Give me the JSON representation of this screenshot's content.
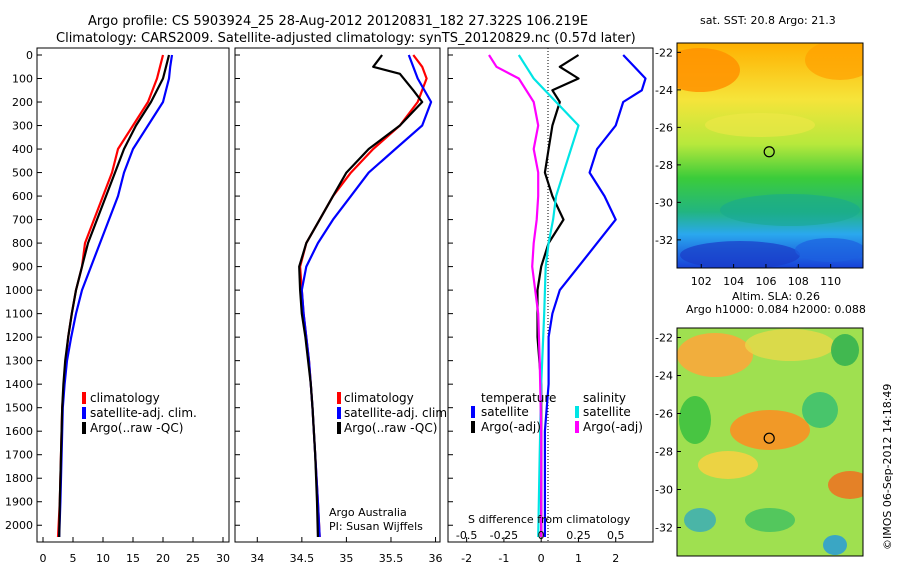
{
  "header": {
    "line1": "Argo profile: CS 5903924_25 28-Aug-2012 20120831_182 27.322S 106.219E",
    "line2": "Climatology: CARS2009. Satellite-adjusted climatology: synTS_20120829.nc (0.57d later)"
  },
  "credit": "©IMOS 06-Sep-2012 14:18:49",
  "colors": {
    "climatology": "#ff0000",
    "satellite": "#0000ff",
    "argo": "#000000",
    "salinity_sat": "#00e5e5",
    "salinity_argo": "#ff00ff"
  },
  "chart_data": [
    {
      "type": "line",
      "panel": "temperature",
      "y_ticks": [
        0,
        100,
        200,
        300,
        400,
        500,
        600,
        700,
        800,
        900,
        1000,
        1100,
        1200,
        1300,
        1400,
        1500,
        1600,
        1700,
        1800,
        1900,
        2000
      ],
      "x_ticks": [
        0,
        5,
        10,
        15,
        20,
        25,
        30
      ],
      "xlim": [
        -1,
        31
      ],
      "ylim": [
        2060,
        0
      ],
      "legend": [
        "climatology",
        "satellite-adj. clim.",
        "Argo(..raw -QC)"
      ],
      "series": [
        {
          "name": "climatology",
          "points": [
            [
              20,
              0
            ],
            [
              19.5,
              50
            ],
            [
              19,
              100
            ],
            [
              17.5,
              200
            ],
            [
              15,
              300
            ],
            [
              12.5,
              400
            ],
            [
              11.5,
              500
            ],
            [
              10,
              600
            ],
            [
              8.5,
              700
            ],
            [
              7,
              800
            ],
            [
              6.5,
              900
            ],
            [
              5.5,
              1000
            ],
            [
              4.8,
              1100
            ],
            [
              4.2,
              1200
            ],
            [
              3.8,
              1300
            ],
            [
              3.5,
              1400
            ],
            [
              3.2,
              1500
            ],
            [
              3,
              1700
            ],
            [
              2.8,
              1900
            ],
            [
              2.5,
              2050
            ]
          ]
        },
        {
          "name": "satellite-adj. clim.",
          "points": [
            [
              21.5,
              0
            ],
            [
              21.2,
              50
            ],
            [
              21,
              100
            ],
            [
              20,
              200
            ],
            [
              17.5,
              300
            ],
            [
              15,
              400
            ],
            [
              13.5,
              500
            ],
            [
              12.5,
              600
            ],
            [
              11,
              700
            ],
            [
              9.5,
              800
            ],
            [
              8,
              900
            ],
            [
              6.5,
              1000
            ],
            [
              5.5,
              1100
            ],
            [
              4.7,
              1200
            ],
            [
              4,
              1300
            ],
            [
              3.6,
              1400
            ],
            [
              3.3,
              1500
            ],
            [
              3.1,
              1700
            ],
            [
              2.9,
              1900
            ],
            [
              2.7,
              2050
            ]
          ]
        },
        {
          "name": "Argo(..raw -QC)",
          "points": [
            [
              21,
              0
            ],
            [
              20.5,
              50
            ],
            [
              20,
              100
            ],
            [
              18,
              200
            ],
            [
              15.5,
              300
            ],
            [
              13.5,
              400
            ],
            [
              12,
              500
            ],
            [
              10.5,
              600
            ],
            [
              9,
              700
            ],
            [
              7.5,
              800
            ],
            [
              6.5,
              900
            ],
            [
              5.5,
              1000
            ],
            [
              4.8,
              1100
            ],
            [
              4.2,
              1200
            ],
            [
              3.7,
              1300
            ],
            [
              3.4,
              1400
            ],
            [
              3.2,
              1500
            ],
            [
              3,
              1700
            ],
            [
              2.8,
              1900
            ],
            [
              2.7,
              2050
            ]
          ]
        }
      ]
    },
    {
      "type": "line",
      "panel": "salinity",
      "x_ticks": [
        34,
        34.5,
        35,
        35.5,
        36
      ],
      "xlim": [
        33.75,
        36.05
      ],
      "ylim": [
        2060,
        0
      ],
      "legend": [
        "climatology",
        "satellite-adj. clim.",
        "Argo(..raw -QC)"
      ],
      "annotation": [
        "Argo Australia",
        "PI: Susan Wijffels"
      ],
      "series": [
        {
          "name": "climatology",
          "points": [
            [
              35.75,
              0
            ],
            [
              35.85,
              50
            ],
            [
              35.9,
              100
            ],
            [
              35.8,
              200
            ],
            [
              35.6,
              300
            ],
            [
              35.3,
              400
            ],
            [
              35.05,
              500
            ],
            [
              34.85,
              600
            ],
            [
              34.7,
              700
            ],
            [
              34.55,
              800
            ],
            [
              34.48,
              900
            ],
            [
              34.5,
              1000
            ],
            [
              34.52,
              1100
            ],
            [
              34.55,
              1200
            ],
            [
              34.58,
              1300
            ],
            [
              34.6,
              1400
            ],
            [
              34.62,
              1500
            ],
            [
              34.65,
              1700
            ],
            [
              34.68,
              1900
            ],
            [
              34.7,
              2050
            ]
          ]
        },
        {
          "name": "satellite-adj. clim.",
          "points": [
            [
              35.7,
              0
            ],
            [
              35.8,
              100
            ],
            [
              35.95,
              200
            ],
            [
              35.85,
              300
            ],
            [
              35.55,
              400
            ],
            [
              35.25,
              500
            ],
            [
              35.05,
              600
            ],
            [
              34.85,
              700
            ],
            [
              34.68,
              800
            ],
            [
              34.55,
              900
            ],
            [
              34.5,
              1000
            ],
            [
              34.52,
              1100
            ],
            [
              34.55,
              1200
            ],
            [
              34.58,
              1300
            ],
            [
              34.6,
              1400
            ],
            [
              34.62,
              1500
            ],
            [
              34.65,
              1700
            ],
            [
              34.68,
              1900
            ],
            [
              34.7,
              2050
            ]
          ]
        },
        {
          "name": "Argo(..raw -QC)",
          "points": [
            [
              35.4,
              0
            ],
            [
              35.3,
              50
            ],
            [
              35.6,
              80
            ],
            [
              35.75,
              150
            ],
            [
              35.85,
              200
            ],
            [
              35.6,
              300
            ],
            [
              35.25,
              400
            ],
            [
              35.0,
              500
            ],
            [
              34.85,
              600
            ],
            [
              34.7,
              700
            ],
            [
              34.55,
              800
            ],
            [
              34.47,
              900
            ],
            [
              34.48,
              1000
            ],
            [
              34.5,
              1100
            ],
            [
              34.54,
              1200
            ],
            [
              34.57,
              1300
            ],
            [
              34.6,
              1400
            ],
            [
              34.62,
              1500
            ],
            [
              34.65,
              1700
            ],
            [
              34.67,
              1900
            ],
            [
              34.68,
              2050
            ]
          ]
        }
      ]
    },
    {
      "type": "line",
      "panel": "difference",
      "x_ticks": [
        -2,
        -1,
        0,
        1,
        2
      ],
      "x_ticks_salinity": [
        -0.5,
        -0.25,
        0,
        0.25,
        0.5
      ],
      "xlim": [
        -2.5,
        3.0
      ],
      "ylim": [
        2060,
        0
      ],
      "xlabel": "S difference from climatology",
      "legend_temperature": {
        "title": "temperature",
        "items": [
          "satellite",
          "Argo(-adj)"
        ]
      },
      "legend_salinity": {
        "title": "salinity",
        "items": [
          "satellite",
          "Argo(-adj)"
        ]
      },
      "series": [
        {
          "name": "temperature satellite",
          "points": [
            [
              2.2,
              0
            ],
            [
              2.5,
              50
            ],
            [
              2.8,
              100
            ],
            [
              2.7,
              150
            ],
            [
              2.2,
              200
            ],
            [
              2.0,
              300
            ],
            [
              1.5,
              400
            ],
            [
              1.3,
              500
            ],
            [
              1.7,
              600
            ],
            [
              2.0,
              700
            ],
            [
              1.5,
              800
            ],
            [
              1.0,
              900
            ],
            [
              0.5,
              1000
            ],
            [
              0.3,
              1100
            ],
            [
              0.2,
              1200
            ],
            [
              0.2,
              1400
            ],
            [
              0.1,
              1600
            ],
            [
              0.1,
              1800
            ],
            [
              0.1,
              2050
            ]
          ]
        },
        {
          "name": "temperature Argo(-adj)",
          "points": [
            [
              1.0,
              0
            ],
            [
              0.5,
              50
            ],
            [
              1.0,
              100
            ],
            [
              0.3,
              150
            ],
            [
              0.5,
              200
            ],
            [
              0.3,
              300
            ],
            [
              0.2,
              400
            ],
            [
              0.1,
              500
            ],
            [
              0.3,
              600
            ],
            [
              0.6,
              700
            ],
            [
              0.2,
              800
            ],
            [
              0.0,
              900
            ],
            [
              -0.1,
              1000
            ],
            [
              -0.1,
              1100
            ],
            [
              -0.1,
              1200
            ],
            [
              0.0,
              1400
            ],
            [
              0.0,
              1600
            ],
            [
              0.0,
              1800
            ],
            [
              0.0,
              2050
            ]
          ]
        },
        {
          "name": "salinity satellite",
          "points": [
            [
              -0.15,
              0
            ],
            [
              -0.1,
              50
            ],
            [
              -0.05,
              100
            ],
            [
              0.1,
              200
            ],
            [
              0.25,
              300
            ],
            [
              0.2,
              400
            ],
            [
              0.15,
              500
            ],
            [
              0.1,
              600
            ],
            [
              0.08,
              700
            ],
            [
              0.05,
              800
            ],
            [
              0.03,
              900
            ],
            [
              0.02,
              1100
            ],
            [
              0.0,
              1400
            ],
            [
              -0.01,
              1700
            ],
            [
              -0.02,
              2050
            ]
          ]
        },
        {
          "name": "salinity Argo(-adj)",
          "points": [
            [
              -0.35,
              0
            ],
            [
              -0.3,
              50
            ],
            [
              -0.15,
              100
            ],
            [
              -0.05,
              200
            ],
            [
              -0.02,
              300
            ],
            [
              -0.05,
              400
            ],
            [
              -0.02,
              500
            ],
            [
              -0.02,
              600
            ],
            [
              -0.03,
              700
            ],
            [
              -0.05,
              800
            ],
            [
              -0.06,
              900
            ],
            [
              -0.04,
              1000
            ],
            [
              -0.02,
              1100
            ],
            [
              -0.01,
              1300
            ],
            [
              0.0,
              1600
            ],
            [
              0.0,
              2050
            ]
          ]
        }
      ]
    },
    {
      "type": "heatmap",
      "panel": "SST map",
      "title": "sat. SST: 20.8  Argo: 21.3",
      "x_ticks": [
        102,
        104,
        106,
        108,
        110
      ],
      "y_ticks": [
        -22,
        -24,
        -26,
        -28,
        -30,
        -32
      ],
      "xlim": [
        100.5,
        112
      ],
      "ylim": [
        -33.5,
        -21.5
      ],
      "marker": [
        106.2,
        -27.3
      ]
    },
    {
      "type": "heatmap",
      "panel": "SLA map",
      "title": "Altim. SLA: 0.26",
      "subtitle": "Argo h1000: 0.084 h2000: 0.088",
      "y_ticks": [
        -22,
        -24,
        -26,
        -28,
        -30,
        -32
      ],
      "xlim": [
        100.5,
        112
      ],
      "ylim": [
        -33.5,
        -21.5
      ],
      "marker": [
        106.2,
        -27.3
      ]
    }
  ]
}
